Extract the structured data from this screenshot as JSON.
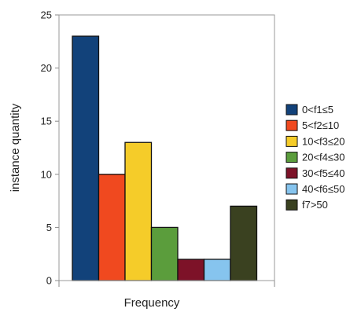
{
  "chart_data": {
    "type": "bar",
    "xlabel": "Frequency",
    "ylabel": "instance quantity",
    "ylim": [
      0,
      25
    ],
    "yticks": [
      0,
      5,
      10,
      15,
      20,
      25
    ],
    "grid": false,
    "legend_position": "right",
    "series": [
      {
        "name": "0<f1≤5",
        "values": [
          23
        ],
        "color": "#12427a"
      },
      {
        "name": "5<f2≤10",
        "values": [
          10
        ],
        "color": "#f0491f"
      },
      {
        "name": "10<f3≤20",
        "values": [
          13
        ],
        "color": "#f5cc29"
      },
      {
        "name": "20<f4≤30",
        "values": [
          5
        ],
        "color": "#5b9d3c"
      },
      {
        "name": "30<f5≤40",
        "values": [
          2
        ],
        "color": "#7d1228"
      },
      {
        "name": "40<f6≤50",
        "values": [
          2
        ],
        "color": "#86c4ee"
      },
      {
        "name": "f7>50",
        "values": [
          7
        ],
        "color": "#3a4120"
      }
    ]
  }
}
